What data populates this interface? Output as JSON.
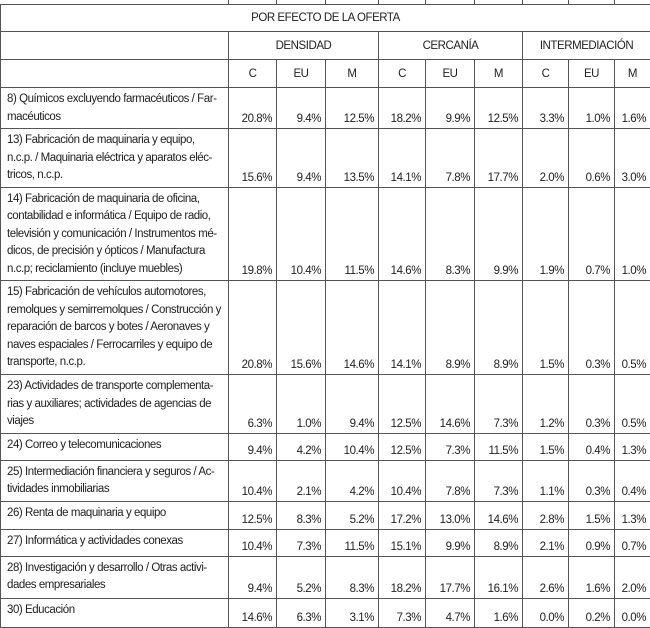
{
  "header": {
    "title": "POR EFECTO DE LA OFERTA",
    "groups": [
      "DENSIDAD",
      "CERCANÍA",
      "INTERMEDIACIÓN"
    ],
    "subcolumns": [
      "C",
      "EU",
      "M",
      "C",
      "EU",
      "M",
      "C",
      "EU",
      "M"
    ]
  },
  "rows": [
    {
      "label": "8) Químicos excluyendo farmacéuticos / Far-\nmacéuticos",
      "values": [
        "20.8%",
        "9.4%",
        "12.5%",
        "18.2%",
        "9.9%",
        "12.5%",
        "3.3%",
        "1.0%",
        "1.6%"
      ]
    },
    {
      "label": "13) Fabricación de maquinaria y equipo,\nn.c.p. / Maquinaria eléctrica y aparatos eléc-\ntricos, n.c.p.",
      "values": [
        "15.6%",
        "9.4%",
        "13.5%",
        "14.1%",
        "7.8%",
        "17.7%",
        "2.0%",
        "0.6%",
        "3.0%"
      ]
    },
    {
      "label": "14) Fabricación de maquinaria de oficina,\ncontabilidad e informática / Equipo de radio,\ntelevisión y comunicación / Instrumentos mé-\ndicos, de precisión y ópticos / Manufactura\nn.c.p; reciclamiento (incluye muebles)",
      "values": [
        "19.8%",
        "10.4%",
        "11.5%",
        "14.6%",
        "8.3%",
        "9.9%",
        "1.9%",
        "0.7%",
        "1.0%"
      ]
    },
    {
      "label": "15) Fabricación de vehículos automotores,\nremolques y semirremolques / Construcción y\nreparación de barcos y botes / Aeronaves y\nnaves espaciales / Ferrocarriles y equipo de\ntransporte, n.c.p.",
      "values": [
        "20.8%",
        "15.6%",
        "14.6%",
        "14.1%",
        "8.9%",
        "8.9%",
        "1.5%",
        "0.3%",
        "0.5%"
      ]
    },
    {
      "label": "23) Actividades de transporte complementa-\nrias y auxiliares; actividades de agencias de\nviajes",
      "values": [
        "6.3%",
        "1.0%",
        "9.4%",
        "12.5%",
        "14.6%",
        "7.3%",
        "1.2%",
        "0.3%",
        "0.5%"
      ]
    },
    {
      "label": "24) Correo y telecomunicaciones",
      "values": [
        "9.4%",
        "4.2%",
        "10.4%",
        "12.5%",
        "7.3%",
        "11.5%",
        "1.5%",
        "0.4%",
        "1.3%"
      ]
    },
    {
      "label": "25) Intermediación financiera y seguros / Ac-\ntividades inmobiliarias",
      "values": [
        "10.4%",
        "2.1%",
        "4.2%",
        "10.4%",
        "7.8%",
        "7.3%",
        "1.1%",
        "0.3%",
        "0.4%"
      ]
    },
    {
      "label": "26) Renta de maquinaria y equipo",
      "values": [
        "12.5%",
        "8.3%",
        "5.2%",
        "17.2%",
        "13.0%",
        "14.6%",
        "2.8%",
        "1.5%",
        "1.3%"
      ]
    },
    {
      "label": "27) Informática y actividades conexas",
      "values": [
        "10.4%",
        "7.3%",
        "11.5%",
        "15.1%",
        "9.9%",
        "8.9%",
        "2.1%",
        "0.9%",
        "0.7%"
      ]
    },
    {
      "label": "28) Investigación y desarrollo / Otras activi-\ndades empresariales",
      "values": [
        "9.4%",
        "5.2%",
        "8.3%",
        "18.2%",
        "17.7%",
        "16.1%",
        "2.6%",
        "1.6%",
        "2.0%"
      ]
    },
    {
      "label": "30) Educación",
      "values": [
        "14.6%",
        "6.3%",
        "3.1%",
        "7.3%",
        "4.7%",
        "1.6%",
        "0.0%",
        "0.2%",
        "0.0%"
      ]
    }
  ]
}
